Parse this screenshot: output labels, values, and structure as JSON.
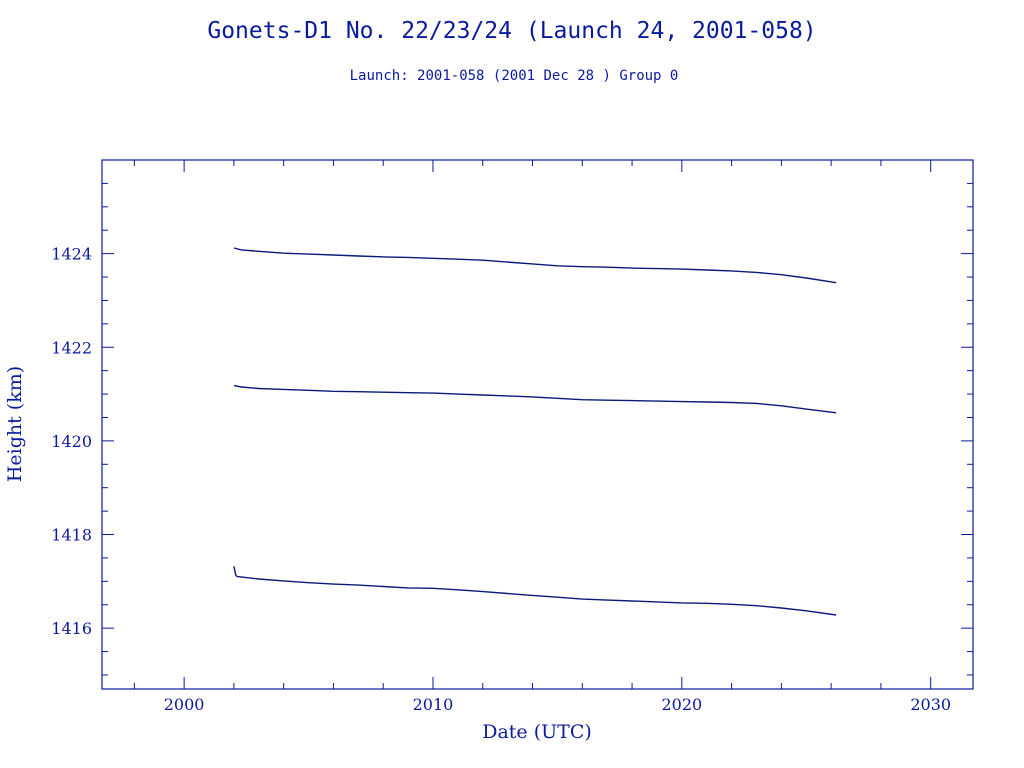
{
  "chart_data": {
    "type": "line",
    "title": "Gonets-D1 No. 22/23/24 (Launch 24, 2001-058)",
    "subtitle": "Launch: 2001-058  (2001 Dec 28 )  Group 0",
    "xlabel": "Date (UTC)",
    "ylabel": "Height (km)",
    "xlim": [
      1996.7,
      2031.7
    ],
    "ylim": [
      1414.7,
      1426.0
    ],
    "xticks": [
      2000,
      2010,
      2020,
      2030
    ],
    "yticks": [
      1416,
      1418,
      1420,
      1422,
      1424
    ],
    "x_minor_step": 2,
    "y_minor_step": 0.5,
    "grid": false,
    "series": [
      {
        "x": [
          2002.0,
          2002.3,
          2003.0,
          2004.0,
          2005.0,
          2006.0,
          2007.0,
          2008.0,
          2009.0,
          2010.0,
          2011.0,
          2012.0,
          2013.0,
          2014.0,
          2015.0,
          2016.0,
          2017.0,
          2018.0,
          2019.0,
          2020.0,
          2021.0,
          2022.0,
          2023.0,
          2024.0,
          2025.0,
          2026.2
        ],
        "y": [
          1424.12,
          1424.08,
          1424.05,
          1424.01,
          1423.99,
          1423.97,
          1423.95,
          1423.93,
          1423.92,
          1423.9,
          1423.88,
          1423.86,
          1423.82,
          1423.78,
          1423.74,
          1423.72,
          1423.71,
          1423.69,
          1423.68,
          1423.67,
          1423.65,
          1423.63,
          1423.6,
          1423.55,
          1423.48,
          1423.38
        ]
      },
      {
        "x": [
          2002.0,
          2002.3,
          2003.0,
          2004.0,
          2005.0,
          2006.0,
          2007.0,
          2008.0,
          2009.0,
          2010.0,
          2011.0,
          2012.0,
          2013.0,
          2014.0,
          2015.0,
          2016.0,
          2017.0,
          2018.0,
          2019.0,
          2020.0,
          2021.0,
          2022.0,
          2023.0,
          2024.0,
          2025.0,
          2026.2
        ],
        "y": [
          1421.18,
          1421.15,
          1421.12,
          1421.1,
          1421.08,
          1421.06,
          1421.05,
          1421.04,
          1421.03,
          1421.02,
          1421.0,
          1420.98,
          1420.96,
          1420.94,
          1420.91,
          1420.88,
          1420.87,
          1420.86,
          1420.85,
          1420.84,
          1420.83,
          1420.82,
          1420.8,
          1420.75,
          1420.68,
          1420.6
        ]
      },
      {
        "x": [
          2002.0,
          2002.08,
          2002.15,
          2003.0,
          2004.0,
          2005.0,
          2006.0,
          2007.0,
          2008.0,
          2009.0,
          2010.0,
          2011.0,
          2012.0,
          2013.0,
          2014.0,
          2015.0,
          2016.0,
          2017.0,
          2018.0,
          2019.0,
          2020.0,
          2021.0,
          2022.0,
          2023.0,
          2024.0,
          2025.0,
          2026.2
        ],
        "y": [
          1417.32,
          1417.12,
          1417.1,
          1417.05,
          1417.01,
          1416.97,
          1416.94,
          1416.92,
          1416.89,
          1416.86,
          1416.85,
          1416.82,
          1416.78,
          1416.74,
          1416.7,
          1416.66,
          1416.62,
          1416.6,
          1416.58,
          1416.56,
          1416.54,
          1416.53,
          1416.51,
          1416.48,
          1416.43,
          1416.37,
          1416.28
        ]
      }
    ]
  }
}
